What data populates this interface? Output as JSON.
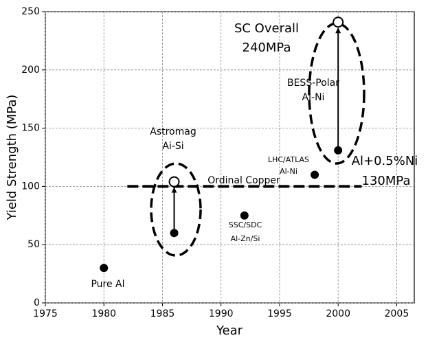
{
  "chart_data": {
    "type": "scatter",
    "xlabel": "Year",
    "ylabel": "Yield Strength (MPa)",
    "xlim": [
      1975,
      2006.5
    ],
    "ylim": [
      0,
      250
    ],
    "xticks": [
      1975,
      1980,
      1985,
      1990,
      1995,
      2000,
      2005
    ],
    "yticks": [
      0,
      50,
      100,
      150,
      200,
      250
    ],
    "grid": true,
    "series": [
      {
        "marker": "filled",
        "color": "#000000",
        "x": [
          1980,
          1986,
          1992,
          1998,
          2000
        ],
        "values": [
          30,
          60,
          75,
          110,
          131
        ]
      },
      {
        "marker": "open",
        "color": "#000000",
        "x": [
          1986,
          2000
        ],
        "values": [
          104,
          241
        ]
      }
    ],
    "reference_line": {
      "value": 100,
      "x": [
        1982,
        2002
      ]
    },
    "annotations": [
      "SC Overall",
      "240MPa",
      "BESS-Polar",
      "Al-Ni",
      "Astromag",
      "Ai-Si",
      "Ordinal Copper",
      "LHC/ATLAS",
      "Al-Ni",
      "Al+0.5%Ni",
      "130MPa",
      "SSC/SDC",
      "Al-Zn/Si",
      "Pure Al"
    ]
  }
}
